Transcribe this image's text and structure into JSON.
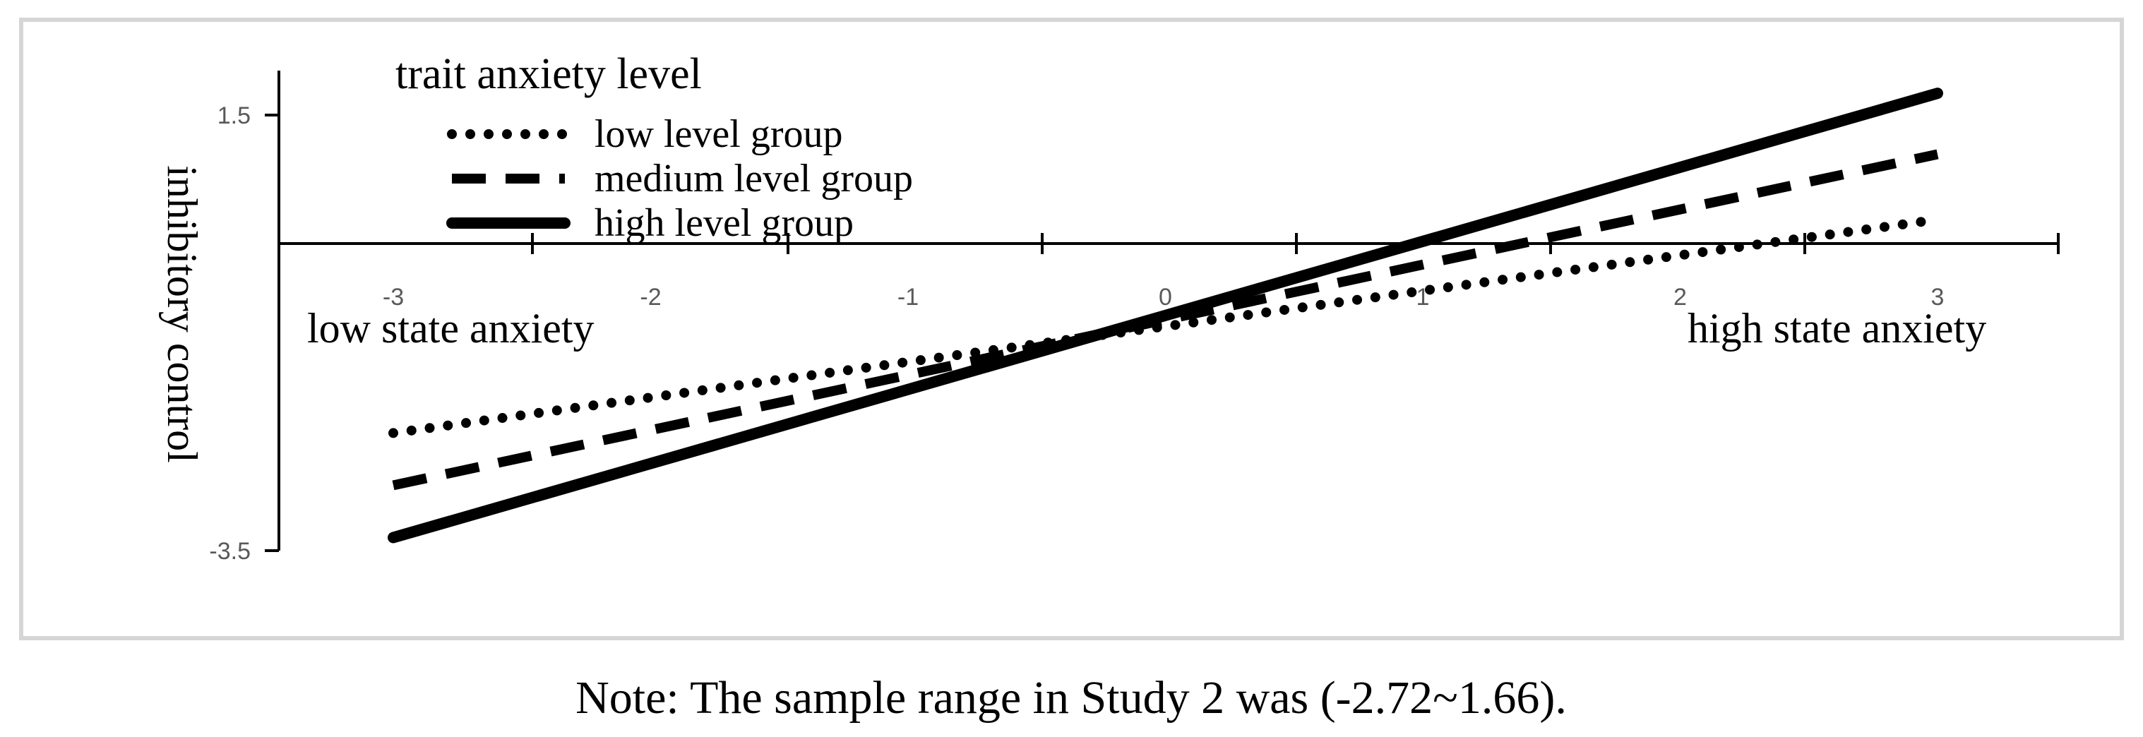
{
  "chart_data": {
    "type": "line",
    "x": [
      -3,
      3
    ],
    "xticks": [
      -3,
      -2,
      -1,
      0,
      1,
      2,
      3
    ],
    "xtick_labels": [
      "-3",
      "-2",
      "-1",
      "0",
      "1",
      "2",
      "3"
    ],
    "xlim": [
      -3.5,
      3.5
    ],
    "ylim": [
      -3.5,
      1.5
    ],
    "yticks": [
      1.5,
      -3.5
    ],
    "ytick_labels": [
      "1.5",
      "-3.5"
    ],
    "ylabel": "inhibitory control",
    "legend_title": "trait anxiety level",
    "legend_position": "top-left",
    "grid": false,
    "series": [
      {
        "name": "low level group",
        "style": "dotted",
        "values": [
          -2.15,
          0.3
        ]
      },
      {
        "name": "medium level group",
        "style": "dashed",
        "values": [
          -2.75,
          1.05
        ]
      },
      {
        "name": "high level group",
        "style": "solid",
        "values": [
          -3.35,
          1.75
        ]
      }
    ],
    "annotations": {
      "left": "low state anxiety",
      "right": "high state anxiety"
    },
    "note": "Note: The sample range in Study 2 was (-2.72~1.66)."
  }
}
